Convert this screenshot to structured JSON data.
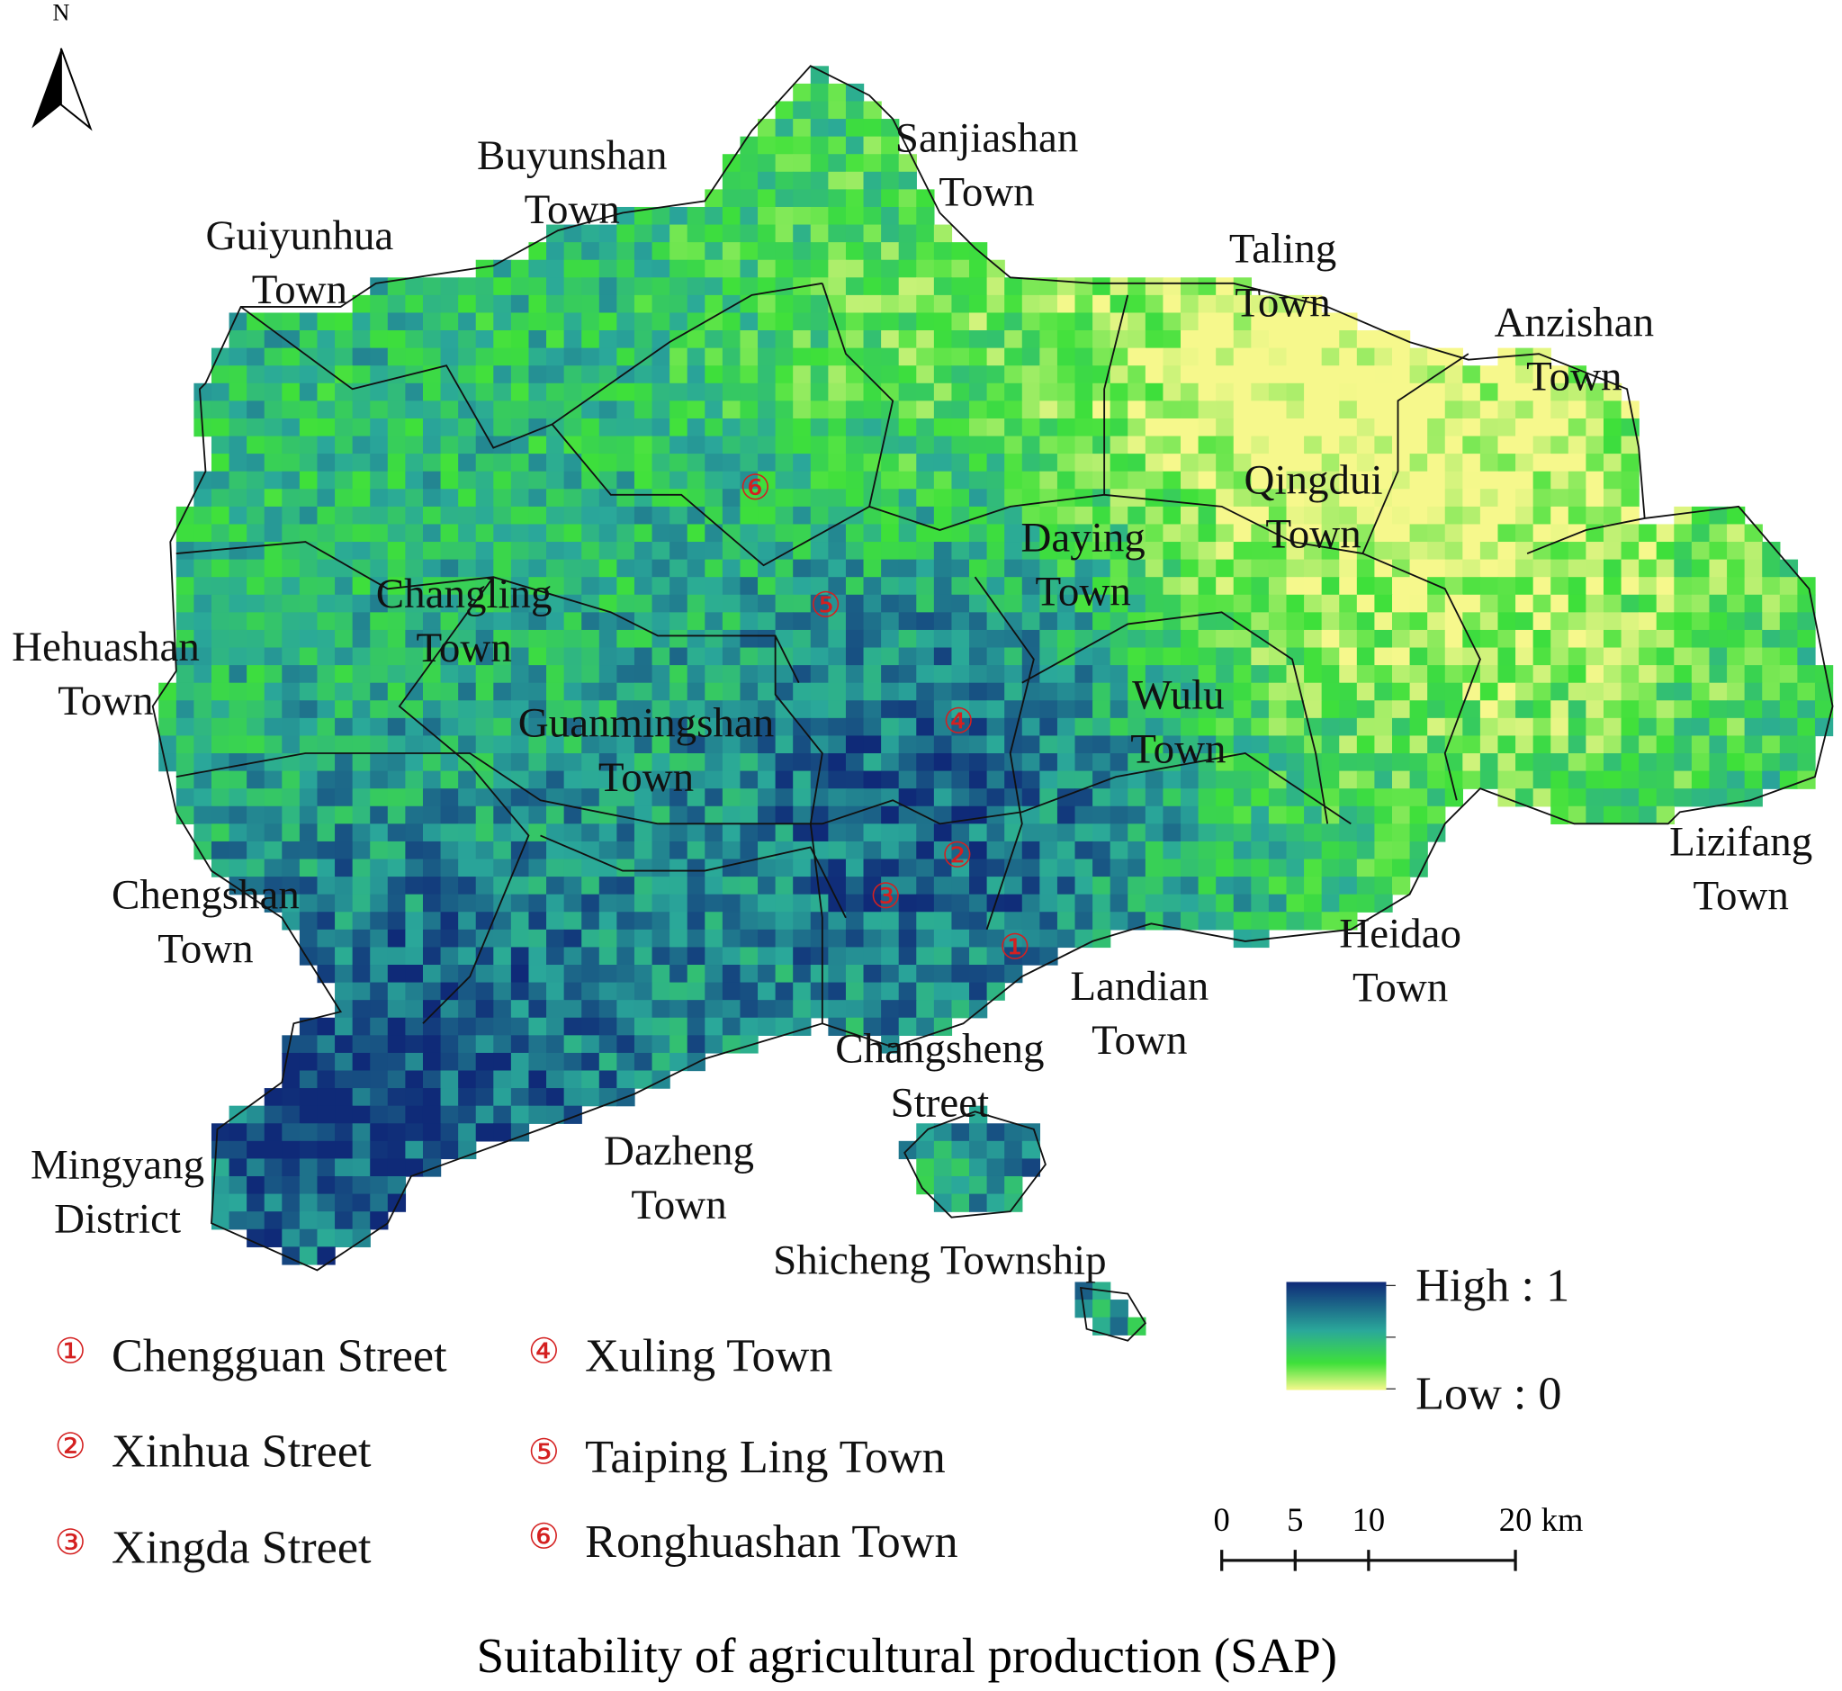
{
  "north_label": "N",
  "title": "Suitability of agricultural production (SAP)",
  "towns": [
    {
      "lines": [
        "Sanjiashan",
        "Town"
      ]
    },
    {
      "lines": [
        "Buyunshan",
        "Town"
      ]
    },
    {
      "lines": [
        "Guiyunhua",
        "Town"
      ]
    },
    {
      "lines": [
        "Taling",
        "Town"
      ]
    },
    {
      "lines": [
        "Anzishan",
        "Town"
      ]
    },
    {
      "lines": [
        "Qingdui",
        "Town"
      ]
    },
    {
      "lines": [
        "Daying",
        "Town"
      ]
    },
    {
      "lines": [
        "Changling",
        "Town"
      ]
    },
    {
      "lines": [
        "Hehuashan",
        "Town"
      ]
    },
    {
      "lines": [
        "Wulu",
        "Town"
      ]
    },
    {
      "lines": [
        "Guanmingshan",
        "Town"
      ]
    },
    {
      "lines": [
        "Chengshan",
        "Town"
      ]
    },
    {
      "lines": [
        "Lizifang",
        "Town"
      ]
    },
    {
      "lines": [
        "Heidao",
        "Town"
      ]
    },
    {
      "lines": [
        "Landian",
        "Town"
      ]
    },
    {
      "lines": [
        "Changsheng",
        "Street"
      ]
    },
    {
      "lines": [
        "Dazheng",
        "Town"
      ]
    },
    {
      "lines": [
        "Mingyang",
        "District"
      ]
    },
    {
      "lines": [
        "Shicheng Township"
      ]
    }
  ],
  "numbered_places": [
    {
      "marker": "①",
      "label": "Chengguan Street"
    },
    {
      "marker": "②",
      "label": "Xinhua Street"
    },
    {
      "marker": "③",
      "label": "Xingda Street"
    },
    {
      "marker": "④",
      "label": "Xuling Town"
    },
    {
      "marker": "⑤",
      "label": "Taiping Ling Town"
    },
    {
      "marker": "⑥",
      "label": "Ronghuashan Town"
    }
  ],
  "color_legend": {
    "high": "High : 1",
    "low": "Low : 0"
  },
  "scale_bar": {
    "ticks": [
      0,
      5,
      10,
      20
    ],
    "unit": "km"
  }
}
